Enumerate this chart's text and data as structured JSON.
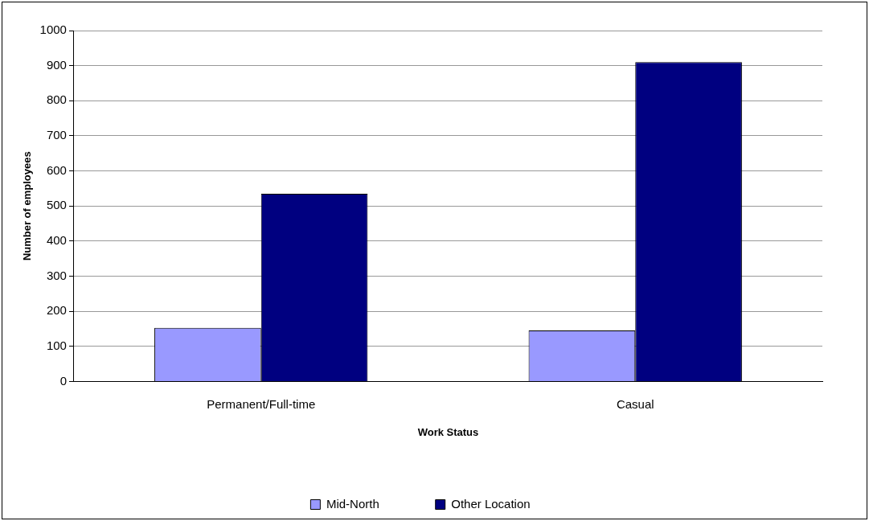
{
  "chart_data": {
    "type": "bar",
    "xlabel": "Work Status",
    "ylabel": "Number of employees",
    "categories": [
      "Permanent/Full-time",
      "Casual"
    ],
    "series": [
      {
        "name": "Mid-North",
        "color": "#9999ff",
        "values": [
          153,
          145
        ]
      },
      {
        "name": "Other Location",
        "color": "#000080",
        "values": [
          535,
          910
        ]
      }
    ],
    "ylim": [
      0,
      1000
    ],
    "yticks": [
      0,
      100,
      200,
      300,
      400,
      500,
      600,
      700,
      800,
      900,
      1000
    ],
    "grid": "y",
    "legend": "bottom"
  }
}
